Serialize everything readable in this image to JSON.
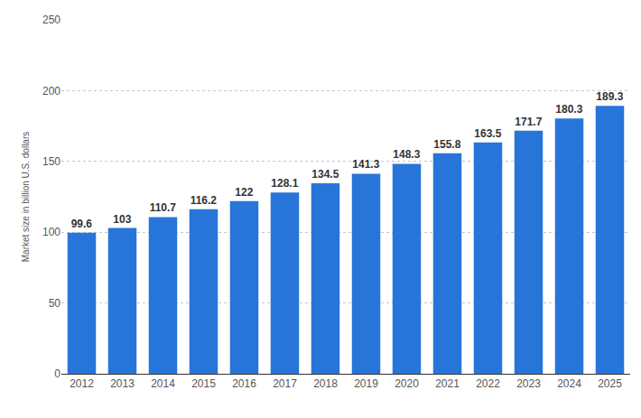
{
  "chart_data": {
    "type": "bar",
    "y_label": "Market size in billion U.S. dollars",
    "categories": [
      "2012",
      "2013",
      "2014",
      "2015",
      "2016",
      "2017",
      "2018",
      "2019",
      "2020",
      "2021",
      "2022",
      "2023",
      "2024",
      "2025"
    ],
    "values": [
      99.6,
      103,
      110.7,
      116.2,
      122,
      128.1,
      134.5,
      141.3,
      148.3,
      155.8,
      163.5,
      171.7,
      180.3,
      189.3
    ],
    "color": "#2775d9",
    "ylim": [
      0,
      250
    ],
    "yticks": [
      0,
      50,
      100,
      150,
      200,
      250
    ],
    "grid": true,
    "data_labels": true
  }
}
